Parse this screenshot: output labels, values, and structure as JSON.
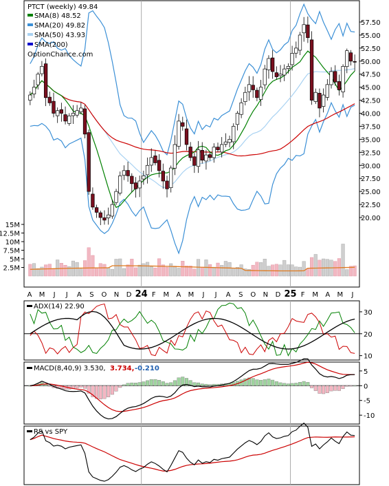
{
  "chart_data": [
    {
      "type": "candlestick",
      "title": "PTCT (weekly) 49.84",
      "watermark": "OptionChance.com",
      "legend": [
        {
          "label": "SMA(8) 48.52",
          "color": "#008000"
        },
        {
          "label": "SMA(20) 49.82",
          "color": "#3a8fd6"
        },
        {
          "label": "SMA(50) 43.93",
          "color": "#a9d2f2"
        },
        {
          "label": "SMA(200)",
          "color": "#0000cc"
        }
      ],
      "y_ticks": [
        "57.50",
        "55.00",
        "52.50",
        "50.00",
        "47.50",
        "45.00",
        "42.50",
        "40.00",
        "37.50",
        "35.00",
        "32.50",
        "30.00",
        "27.50",
        "25.00",
        "22.50",
        "20.00"
      ],
      "ylim": [
        17.5,
        59
      ],
      "x_ticks": [
        "A",
        "M",
        "J",
        "J",
        "A",
        "S",
        "O",
        "N",
        "D",
        "24",
        "F",
        "M",
        "A",
        "M",
        "J",
        "J",
        "A",
        "S",
        "O",
        "N",
        "D",
        "25",
        "F",
        "M",
        "A",
        "M",
        "J"
      ],
      "closes": [
        43.5,
        45.0,
        47.5,
        49.0,
        43.0,
        42.0,
        40.0,
        40.5,
        40.0,
        38.5,
        39.5,
        40.0,
        40.5,
        41.0,
        36.0,
        25.0,
        22.0,
        21.0,
        20.0,
        19.5,
        20.5,
        22.5,
        25.0,
        28.0,
        29.0,
        28.0,
        26.5,
        25.5,
        27.0,
        28.0,
        30.0,
        31.5,
        30.5,
        29.0,
        27.0,
        25.5,
        29.5,
        34.0,
        38.5,
        37.5,
        34.0,
        31.5,
        30.0,
        33.0,
        31.0,
        32.0,
        31.5,
        33.5,
        33.0,
        34.0,
        34.5,
        35.0,
        37.5,
        40.0,
        42.0,
        44.0,
        45.5,
        44.5,
        43.0,
        45.0,
        48.5,
        50.5,
        48.0,
        47.0,
        47.5,
        48.5,
        49.0,
        51.5,
        52.5,
        55.0,
        57.0,
        54.5,
        42.5,
        44.0,
        41.0,
        43.5,
        45.5,
        48.0,
        46.0,
        44.5,
        49.0,
        52.0,
        50.0,
        49.84
      ],
      "volume_ticks": [
        "15M",
        "12.5M",
        "10M",
        "7.5M",
        "5M",
        "2.5M"
      ],
      "volume_max": 15000000
    },
    {
      "type": "line",
      "title": "ADX(14) 22.90",
      "y_ticks": [
        "30",
        "20",
        "10"
      ],
      "ylim": [
        8,
        35
      ]
    },
    {
      "type": "line",
      "title": "MACD(8,40,9) 3.530,",
      "values_text": [
        "3.734,",
        "-0.210"
      ],
      "y_ticks": [
        "5",
        "0",
        "-5",
        "-10"
      ],
      "ylim": [
        -13,
        8
      ]
    },
    {
      "type": "line",
      "title": "RS vs SPY"
    }
  ]
}
